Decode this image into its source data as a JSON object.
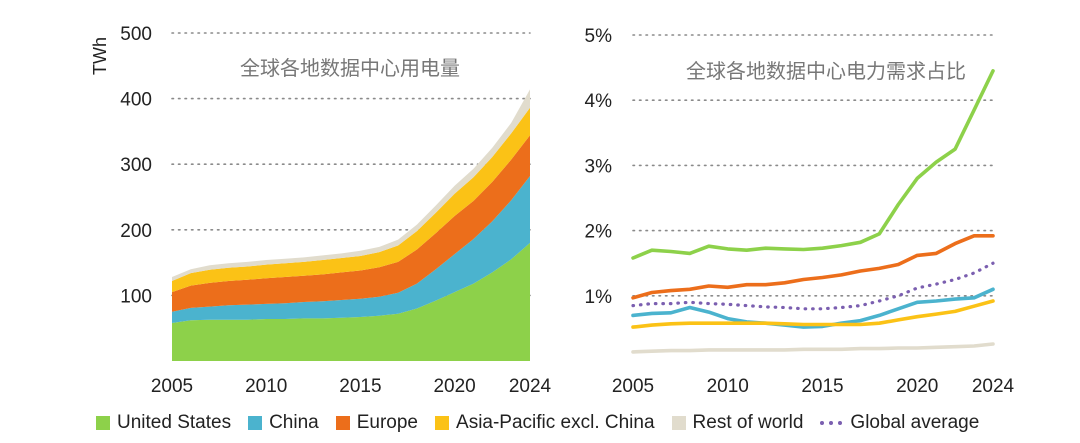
{
  "chart_data": [
    {
      "type": "area",
      "title": "全球各地数据中心用电量",
      "ylabel": "TWh",
      "xlabel": "",
      "stacked": true,
      "x": [
        2005,
        2006,
        2007,
        2008,
        2009,
        2010,
        2011,
        2012,
        2013,
        2014,
        2015,
        2016,
        2017,
        2018,
        2019,
        2020,
        2021,
        2022,
        2023,
        2024
      ],
      "x_ticks": [
        "2005",
        "2010",
        "2015",
        "2020",
        "2024"
      ],
      "ylim": [
        0,
        500
      ],
      "y_ticks": [
        "100",
        "200",
        "300",
        "400",
        "500"
      ],
      "grid": "horizontal dotted",
      "series": [
        {
          "name": "United States",
          "color": "#8dd14a",
          "values": [
            58,
            62,
            63,
            63,
            63,
            64,
            64,
            65,
            65,
            66,
            67,
            69,
            72,
            80,
            92,
            105,
            118,
            135,
            155,
            180
          ]
        },
        {
          "name": "China",
          "color": "#4bb3ce",
          "values": [
            17,
            19,
            20,
            22,
            23,
            23,
            24,
            25,
            26,
            27,
            28,
            29,
            32,
            38,
            48,
            58,
            68,
            78,
            90,
            102
          ]
        },
        {
          "name": "Europe",
          "color": "#ec6e1b",
          "values": [
            30,
            34,
            36,
            37,
            38,
            39,
            40,
            40,
            41,
            42,
            43,
            45,
            47,
            52,
            55,
            58,
            58,
            60,
            62,
            62
          ]
        },
        {
          "name": "Asia-Pacific excl. China",
          "color": "#fbc216",
          "values": [
            17,
            19,
            20,
            20,
            20,
            21,
            21,
            21,
            22,
            22,
            22,
            23,
            25,
            28,
            31,
            34,
            36,
            38,
            40,
            42
          ]
        },
        {
          "name": "Rest of world",
          "color": "#e1dccd",
          "values": [
            6,
            6,
            7,
            7,
            7,
            7,
            7,
            7,
            7,
            7,
            8,
            8,
            9,
            10,
            11,
            12,
            13,
            14,
            16,
            28
          ]
        }
      ]
    },
    {
      "type": "line",
      "title": "全球各地数据中心电力需求占比",
      "ylabel": "",
      "xlabel": "",
      "x": [
        2005,
        2006,
        2007,
        2008,
        2009,
        2010,
        2011,
        2012,
        2013,
        2014,
        2015,
        2016,
        2017,
        2018,
        2019,
        2020,
        2021,
        2022,
        2023,
        2024
      ],
      "x_ticks": [
        "2005",
        "2010",
        "2015",
        "2020",
        "2024"
      ],
      "ylim": [
        0,
        5
      ],
      "y_ticks": [
        "1%",
        "2%",
        "3%",
        "4%",
        "5%"
      ],
      "grid": "horizontal dotted",
      "series": [
        {
          "name": "United States",
          "color": "#8dd14a",
          "values": [
            1.58,
            1.7,
            1.68,
            1.65,
            1.76,
            1.72,
            1.7,
            1.73,
            1.72,
            1.71,
            1.73,
            1.77,
            1.82,
            1.95,
            2.4,
            2.8,
            3.05,
            3.25,
            3.85,
            4.45
          ]
        },
        {
          "name": "China",
          "color": "#4bb3ce",
          "values": [
            0.7,
            0.73,
            0.74,
            0.82,
            0.75,
            0.65,
            0.6,
            0.58,
            0.55,
            0.52,
            0.53,
            0.58,
            0.62,
            0.7,
            0.8,
            0.9,
            0.92,
            0.95,
            0.97,
            1.1
          ]
        },
        {
          "name": "Europe",
          "color": "#ec6e1b",
          "values": [
            0.97,
            1.05,
            1.08,
            1.1,
            1.15,
            1.13,
            1.17,
            1.17,
            1.2,
            1.25,
            1.28,
            1.32,
            1.38,
            1.42,
            1.48,
            1.62,
            1.65,
            1.8,
            1.92,
            1.92
          ]
        },
        {
          "name": "Asia-Pacific excl. China",
          "color": "#fbc216",
          "values": [
            0.52,
            0.55,
            0.57,
            0.58,
            0.58,
            0.58,
            0.58,
            0.58,
            0.57,
            0.56,
            0.56,
            0.56,
            0.56,
            0.58,
            0.63,
            0.68,
            0.72,
            0.76,
            0.84,
            0.92
          ]
        },
        {
          "name": "Rest of world",
          "color": "#e1dccd",
          "values": [
            0.14,
            0.15,
            0.16,
            0.16,
            0.17,
            0.17,
            0.17,
            0.17,
            0.17,
            0.18,
            0.18,
            0.18,
            0.19,
            0.19,
            0.2,
            0.2,
            0.21,
            0.22,
            0.23,
            0.26
          ]
        },
        {
          "name": "Global average",
          "color": "#7b5fb0",
          "dashed": true,
          "values": [
            0.85,
            0.88,
            0.88,
            0.9,
            0.88,
            0.87,
            0.85,
            0.83,
            0.82,
            0.8,
            0.8,
            0.82,
            0.85,
            0.92,
            1.0,
            1.12,
            1.18,
            1.25,
            1.35,
            1.5
          ]
        }
      ]
    }
  ],
  "legend": [
    {
      "label": "United States",
      "color": "#8dd14a",
      "icon": "square-swatch"
    },
    {
      "label": "China",
      "color": "#4bb3ce",
      "icon": "square-swatch"
    },
    {
      "label": "Europe",
      "color": "#ec6e1b",
      "icon": "square-swatch"
    },
    {
      "label": "Asia-Pacific excl. China",
      "color": "#fbc216",
      "icon": "square-swatch"
    },
    {
      "label": "Rest of world",
      "color": "#e1dccd",
      "icon": "square-swatch"
    },
    {
      "label": "Global average",
      "color": "#7b5fb0",
      "icon": "dotted-line"
    }
  ]
}
